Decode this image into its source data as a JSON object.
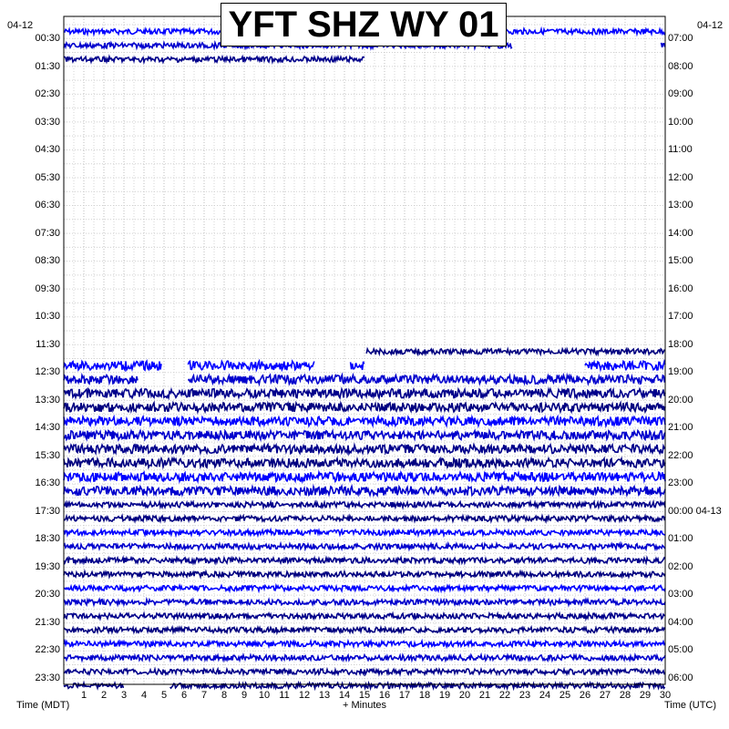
{
  "chart_data": {
    "type": "line",
    "title": "YFT SHZ WY 01",
    "xlabel": "+ Minutes",
    "left_axis_title": "Time (MDT)",
    "right_axis_title": "Time (UTC)",
    "left_date": "04-12",
    "right_date_top": "04-12",
    "right_date_midnight": "04-13",
    "x_range": [
      0,
      30
    ],
    "x_ticks": [
      "1",
      "2",
      "3",
      "4",
      "5",
      "6",
      "7",
      "8",
      "9",
      "10",
      "11",
      "12",
      "13",
      "14",
      "15",
      "16",
      "17",
      "18",
      "19",
      "20",
      "21",
      "22",
      "23",
      "24",
      "25",
      "26",
      "27",
      "28",
      "29",
      "30"
    ],
    "left_labels": [
      "00:30",
      "01:30",
      "02:30",
      "03:30",
      "04:30",
      "05:30",
      "06:30",
      "07:30",
      "08:30",
      "09:30",
      "10:30",
      "11:30",
      "12:30",
      "13:30",
      "14:30",
      "15:30",
      "16:30",
      "17:30",
      "18:30",
      "19:30",
      "20:30",
      "21:30",
      "22:30",
      "23:30"
    ],
    "right_labels": [
      "07:00",
      "08:00",
      "09:00",
      "10:00",
      "11:00",
      "12:00",
      "13:00",
      "14:00",
      "15:00",
      "16:00",
      "17:00",
      "18:00",
      "19:00",
      "20:00",
      "21:00",
      "22:00",
      "23:00",
      "00:00",
      "01:00",
      "02:00",
      "03:00",
      "04:00",
      "05:00",
      "06:00"
    ],
    "trace_colors": [
      "#0000ff",
      "#0000cd",
      "#00008b",
      "#000080"
    ],
    "grid": true,
    "trace_rows": [
      {
        "row": 0,
        "segments": [
          [
            0,
            30
          ]
        ]
      },
      {
        "row": 1,
        "segments": [
          [
            0,
            22.4
          ],
          [
            29.8,
            30
          ]
        ]
      },
      {
        "row": 2,
        "segments": [
          [
            0,
            15
          ]
        ]
      },
      {
        "row": 23,
        "segments": [
          [
            15.1,
            30
          ]
        ]
      },
      {
        "row": 24,
        "segments": [
          [
            0,
            4.9
          ],
          [
            6.2,
            11
          ],
          [
            10.9,
            12.5
          ],
          [
            14.3,
            15
          ],
          [
            26,
            30
          ]
        ]
      },
      {
        "row": 25,
        "segments": [
          [
            0,
            3.7
          ],
          [
            6.2,
            30
          ]
        ]
      },
      {
        "row": 26,
        "segments": [
          [
            0,
            30
          ]
        ]
      },
      {
        "row": 27,
        "segments": [
          [
            0,
            30
          ]
        ]
      },
      {
        "row": 28,
        "segments": [
          [
            0,
            30
          ]
        ]
      },
      {
        "row": 29,
        "segments": [
          [
            0,
            30
          ]
        ]
      },
      {
        "row": 30,
        "segments": [
          [
            0,
            30
          ]
        ]
      },
      {
        "row": 31,
        "segments": [
          [
            0,
            30
          ]
        ]
      },
      {
        "row": 32,
        "segments": [
          [
            0,
            30
          ]
        ]
      },
      {
        "row": 33,
        "segments": [
          [
            0,
            30
          ]
        ]
      },
      {
        "row": 34,
        "segments": [
          [
            0,
            30
          ]
        ]
      },
      {
        "row": 35,
        "segments": [
          [
            0,
            30
          ]
        ]
      },
      {
        "row": 36,
        "segments": [
          [
            0,
            30
          ]
        ]
      },
      {
        "row": 37,
        "segments": [
          [
            0,
            30
          ]
        ]
      },
      {
        "row": 38,
        "segments": [
          [
            0,
            30
          ]
        ]
      },
      {
        "row": 39,
        "segments": [
          [
            0,
            30
          ]
        ]
      },
      {
        "row": 40,
        "segments": [
          [
            0,
            30
          ]
        ]
      },
      {
        "row": 41,
        "segments": [
          [
            0,
            30
          ]
        ]
      },
      {
        "row": 42,
        "segments": [
          [
            0,
            30
          ]
        ]
      },
      {
        "row": 43,
        "segments": [
          [
            0,
            30
          ]
        ]
      },
      {
        "row": 44,
        "segments": [
          [
            0,
            30
          ]
        ]
      },
      {
        "row": 45,
        "segments": [
          [
            0,
            30
          ]
        ]
      },
      {
        "row": 46,
        "segments": [
          [
            0,
            30
          ]
        ]
      },
      {
        "row": 47,
        "segments": [
          [
            0,
            3
          ],
          [
            5.3,
            30
          ]
        ]
      }
    ]
  }
}
